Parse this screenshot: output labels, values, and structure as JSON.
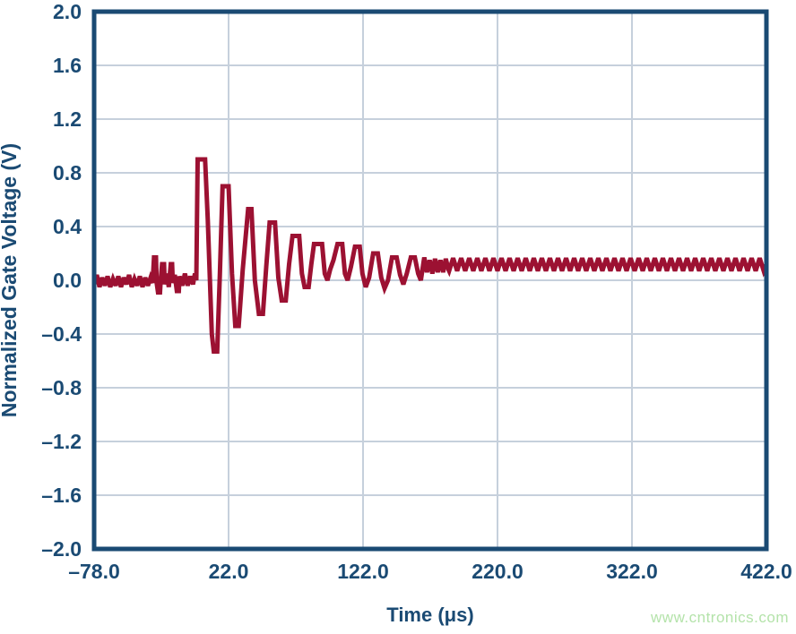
{
  "watermark": {
    "text": "www.cntronics.com",
    "color": "#b4e3aa"
  },
  "chart_data": {
    "type": "line",
    "title": "",
    "xlabel": "Time (μs)",
    "ylabel": "Normalized Gate Voltage (V)",
    "xlim": [
      -78,
      422
    ],
    "ylim": [
      -2.0,
      2.0
    ],
    "grid": true,
    "legend": "none",
    "xticks": [
      -78.0,
      22.0,
      122.0,
      220.0,
      322.0,
      422.0
    ],
    "xtick_labels": [
      "–78.0",
      "22.0",
      "122.0",
      "220.0",
      "322.0",
      "422.0"
    ],
    "yticks": [
      2.0,
      1.6,
      1.2,
      0.8,
      0.4,
      0.0,
      -0.4,
      -0.8,
      -1.2,
      -1.6,
      -2.0
    ],
    "ytick_labels": [
      "2.0",
      "1.6",
      "1.2",
      "0.8",
      "0.4",
      "0.0",
      "–0.4",
      "–0.8",
      "–1.2",
      "–1.6",
      "–2.0"
    ],
    "colors": {
      "axis": "#1a4a73",
      "grid": "#c6d0dc",
      "line": "#9c1132",
      "background": "#ffffff"
    },
    "series": [
      {
        "name": "Normalized Gate Voltage",
        "points": [
          [
            -78,
            -0.03
          ],
          [
            -76,
            0.04
          ],
          [
            -74,
            -0.05
          ],
          [
            -72,
            0.02
          ],
          [
            -70,
            -0.04
          ],
          [
            -68,
            0.03
          ],
          [
            -66,
            -0.05
          ],
          [
            -64,
            0.01
          ],
          [
            -62,
            -0.04
          ],
          [
            -60,
            0.03
          ],
          [
            -58,
            -0.05
          ],
          [
            -56,
            0.02
          ],
          [
            -54,
            -0.03
          ],
          [
            -52,
            0.04
          ],
          [
            -50,
            -0.05
          ],
          [
            -48,
            0.01
          ],
          [
            -46,
            -0.04
          ],
          [
            -44,
            0.03
          ],
          [
            -42,
            -0.05
          ],
          [
            -40,
            0.02
          ],
          [
            -38,
            -0.04
          ],
          [
            -36,
            0.02
          ],
          [
            -34.5,
            -0.02
          ],
          [
            -33.5,
            0.17
          ],
          [
            -32,
            0.17
          ],
          [
            -31.5,
            -0.02
          ],
          [
            -30.5,
            -0.09
          ],
          [
            -29,
            -0.09
          ],
          [
            -28.5,
            0.0
          ],
          [
            -27.5,
            0.12
          ],
          [
            -26,
            0.12
          ],
          [
            -25.5,
            -0.03
          ],
          [
            -24,
            0.05
          ],
          [
            -22.5,
            -0.05
          ],
          [
            -21,
            0.12
          ],
          [
            -20,
            0.12
          ],
          [
            -19.5,
            -0.02
          ],
          [
            -18,
            0.04
          ],
          [
            -16.5,
            -0.08
          ],
          [
            -15,
            -0.08
          ],
          [
            -14.5,
            0.03
          ],
          [
            -12.5,
            -0.04
          ],
          [
            -10.5,
            0.05
          ],
          [
            -8.5,
            -0.04
          ],
          [
            -6.5,
            0.03
          ],
          [
            -4.5,
            -0.03
          ],
          [
            -3,
            0.05
          ],
          [
            -2,
            0.0
          ],
          [
            -1,
            0.9
          ],
          [
            4.5,
            0.9
          ],
          [
            6.5,
            0.45
          ],
          [
            9.5,
            -0.4
          ],
          [
            11,
            -0.53
          ],
          [
            13.5,
            -0.53
          ],
          [
            15.5,
            0.05
          ],
          [
            17.5,
            0.7
          ],
          [
            22,
            0.7
          ],
          [
            24.5,
            0.05
          ],
          [
            27,
            -0.34
          ],
          [
            29.5,
            -0.34
          ],
          [
            32.5,
            0.08
          ],
          [
            36.5,
            0.53
          ],
          [
            39,
            0.53
          ],
          [
            41.5,
            0.0
          ],
          [
            44.5,
            -0.25
          ],
          [
            47.5,
            -0.25
          ],
          [
            50,
            0.1
          ],
          [
            52.5,
            0.43
          ],
          [
            56.5,
            0.43
          ],
          [
            59,
            0.02
          ],
          [
            61.5,
            -0.15
          ],
          [
            64.5,
            -0.15
          ],
          [
            67,
            0.12
          ],
          [
            69.5,
            0.33
          ],
          [
            74.5,
            0.33
          ],
          [
            76.5,
            0.05
          ],
          [
            78.5,
            -0.05
          ],
          [
            81.5,
            -0.05
          ],
          [
            83.5,
            0.12
          ],
          [
            85.5,
            0.27
          ],
          [
            91.5,
            0.27
          ],
          [
            93.5,
            0.05
          ],
          [
            95.5,
            0.0
          ],
          [
            97.5,
            0.08
          ],
          [
            100,
            0.15
          ],
          [
            103,
            0.27
          ],
          [
            106.5,
            0.27
          ],
          [
            108.5,
            0.05
          ],
          [
            110.5,
            0.0
          ],
          [
            113,
            0.1
          ],
          [
            116,
            0.25
          ],
          [
            119.5,
            0.25
          ],
          [
            121.5,
            0.05
          ],
          [
            124,
            -0.05
          ],
          [
            126.5,
            0.02
          ],
          [
            129.5,
            0.2
          ],
          [
            133,
            0.2
          ],
          [
            135.5,
            0.02
          ],
          [
            138,
            -0.06
          ],
          [
            140.5,
            0.0
          ],
          [
            143.5,
            0.17
          ],
          [
            147,
            0.17
          ],
          [
            149.5,
            0.04
          ],
          [
            152,
            -0.03
          ],
          [
            154.5,
            0.05
          ],
          [
            157.5,
            0.17
          ],
          [
            160.5,
            0.17
          ],
          [
            163,
            0.05
          ],
          [
            165,
            0.0
          ],
          [
            167.5,
            0.17
          ],
          [
            169.5,
            0.06
          ],
          [
            171.5,
            0.15
          ],
          [
            173.5,
            0.05
          ],
          [
            175.5,
            0.16
          ],
          [
            177.5,
            0.06
          ],
          [
            179.5,
            0.15
          ],
          [
            181.5,
            0.06
          ],
          [
            183.5,
            0.16
          ],
          [
            185.5,
            0.08
          ]
        ]
      }
    ],
    "settled_band": {
      "t_start": 186,
      "t_end": 422,
      "v_low": 0.07,
      "v_high": 0.165,
      "step_us": 3
    }
  }
}
